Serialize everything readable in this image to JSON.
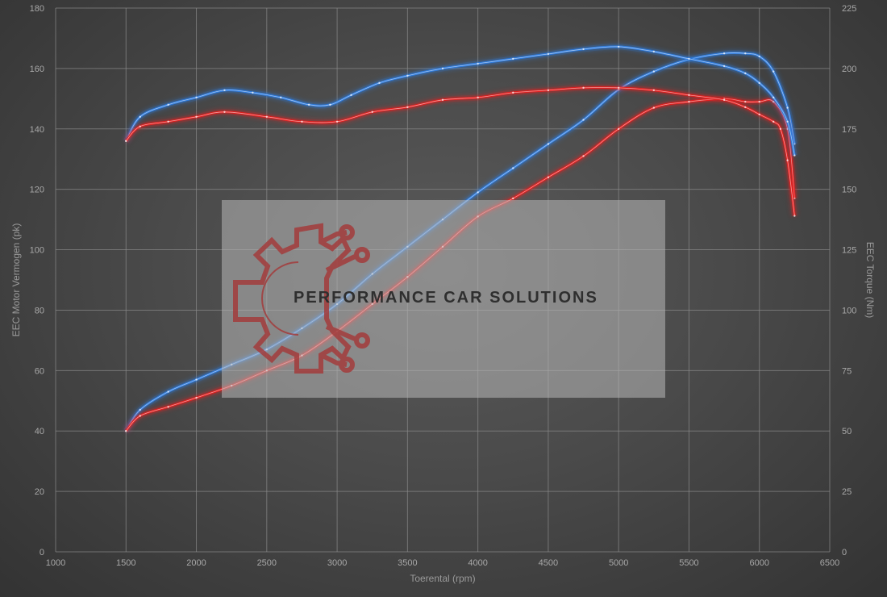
{
  "chart_data": {
    "type": "line",
    "xlabel": "Toerental (rpm)",
    "ylabel_left": "EEC Motor Vermogen (pk)",
    "ylabel_right": "EEC Torque (Nm)",
    "xlim": [
      1000,
      6500
    ],
    "ylim_left": [
      0,
      180
    ],
    "ylim_right": [
      0,
      225
    ],
    "x_ticks": [
      "1000",
      "1500",
      "2000",
      "2500",
      "3000",
      "3500",
      "4000",
      "4500",
      "5000",
      "5500",
      "6000",
      "6500"
    ],
    "y_left_ticks": [
      "0",
      "20",
      "40",
      "60",
      "80",
      "100",
      "120",
      "140",
      "160",
      "180"
    ],
    "y_right_ticks": [
      "0",
      "25",
      "50",
      "75",
      "100",
      "125",
      "150",
      "175",
      "200",
      "225"
    ],
    "grid": true,
    "series": [
      {
        "axis": "left",
        "color": "#2f7bdc",
        "points": [
          [
            1500,
            40
          ],
          [
            1600,
            47
          ],
          [
            1800,
            53
          ],
          [
            2000,
            57
          ],
          [
            2250,
            62
          ],
          [
            2500,
            67
          ],
          [
            2750,
            74
          ],
          [
            3000,
            82
          ],
          [
            3250,
            92
          ],
          [
            3500,
            101
          ],
          [
            3750,
            110
          ],
          [
            4000,
            119
          ],
          [
            4250,
            127
          ],
          [
            4500,
            135
          ],
          [
            4750,
            143
          ],
          [
            5000,
            153
          ],
          [
            5250,
            159
          ],
          [
            5500,
            163
          ],
          [
            5750,
            165
          ],
          [
            5900,
            165
          ],
          [
            6000,
            164
          ],
          [
            6100,
            159
          ],
          [
            6200,
            147
          ],
          [
            6250,
            135
          ]
        ]
      },
      {
        "axis": "left",
        "color": "#e02020",
        "points": [
          [
            1500,
            40
          ],
          [
            1600,
            45
          ],
          [
            1800,
            48
          ],
          [
            2000,
            51
          ],
          [
            2250,
            55
          ],
          [
            2500,
            60
          ],
          [
            2750,
            65
          ],
          [
            3000,
            73
          ],
          [
            3250,
            82
          ],
          [
            3500,
            91
          ],
          [
            3750,
            101
          ],
          [
            4000,
            111
          ],
          [
            4250,
            117
          ],
          [
            4500,
            124
          ],
          [
            4750,
            131
          ],
          [
            5000,
            140
          ],
          [
            5250,
            147
          ],
          [
            5500,
            149
          ],
          [
            5750,
            150
          ],
          [
            5900,
            149
          ],
          [
            6000,
            149
          ],
          [
            6100,
            149
          ],
          [
            6200,
            140
          ],
          [
            6250,
            117
          ]
        ]
      },
      {
        "axis": "right",
        "color": "#2f7bdc",
        "points": [
          [
            1500,
            170
          ],
          [
            1600,
            180
          ],
          [
            1800,
            185
          ],
          [
            2000,
            188
          ],
          [
            2200,
            191
          ],
          [
            2400,
            190
          ],
          [
            2600,
            188
          ],
          [
            2800,
            185
          ],
          [
            2950,
            185
          ],
          [
            3100,
            189
          ],
          [
            3300,
            194
          ],
          [
            3500,
            197
          ],
          [
            3750,
            200
          ],
          [
            4000,
            202
          ],
          [
            4250,
            204
          ],
          [
            4500,
            206
          ],
          [
            4750,
            208
          ],
          [
            5000,
            209
          ],
          [
            5250,
            207
          ],
          [
            5500,
            204
          ],
          [
            5750,
            201
          ],
          [
            5900,
            198
          ],
          [
            6000,
            194
          ],
          [
            6100,
            188
          ],
          [
            6200,
            178
          ],
          [
            6250,
            164
          ]
        ]
      },
      {
        "axis": "right",
        "color": "#e02020",
        "points": [
          [
            1500,
            170
          ],
          [
            1600,
            176
          ],
          [
            1800,
            178
          ],
          [
            2000,
            180
          ],
          [
            2200,
            182
          ],
          [
            2500,
            180
          ],
          [
            2750,
            178
          ],
          [
            3000,
            178
          ],
          [
            3250,
            182
          ],
          [
            3500,
            184
          ],
          [
            3750,
            187
          ],
          [
            4000,
            188
          ],
          [
            4250,
            190
          ],
          [
            4500,
            191
          ],
          [
            4750,
            192
          ],
          [
            5000,
            192
          ],
          [
            5250,
            191
          ],
          [
            5500,
            189
          ],
          [
            5750,
            187
          ],
          [
            5900,
            184
          ],
          [
            6000,
            181
          ],
          [
            6100,
            178
          ],
          [
            6150,
            175
          ],
          [
            6200,
            162
          ],
          [
            6250,
            139
          ]
        ]
      }
    ],
    "watermark": {
      "text": "PERFORMANCE CAR SOLUTIONS",
      "icon": "gear-circuit-icon"
    }
  }
}
